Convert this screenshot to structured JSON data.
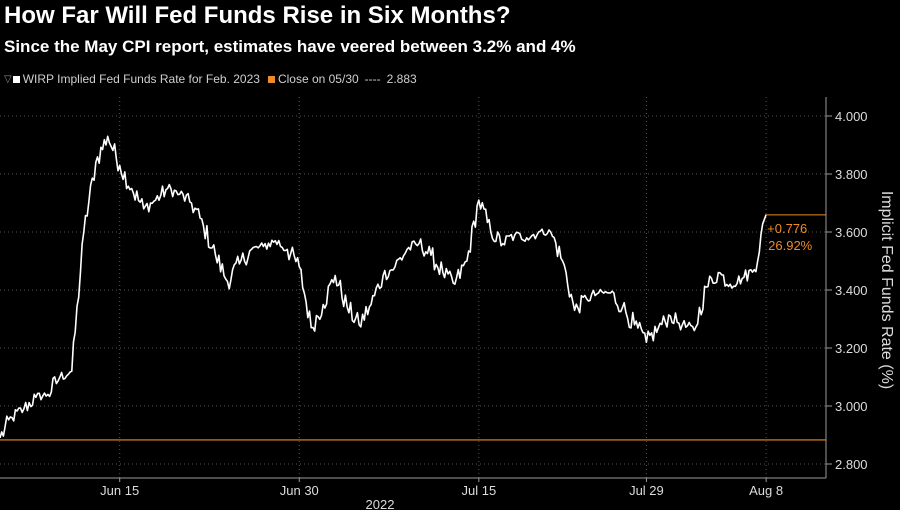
{
  "title": "How Far Will Fed Funds Rise in Six Months?",
  "subtitle": "Since the May CPI report, estimates have veered between 3.2% and 4%",
  "legend": {
    "filter_icon": "filter-icon",
    "series_label": "WIRP Implied Fed Funds Rate for Feb. 2023",
    "close_label": "Close on 05/30",
    "close_dashes": "----",
    "close_value": "2.883"
  },
  "colors": {
    "background": "#000000",
    "series": "#ffffff",
    "close_line": "#f08a24",
    "grid": "#555555",
    "axis": "#9a9a9a"
  },
  "chart_data": {
    "type": "line",
    "ylabel": "Implicit Fed Funds Rate (%)",
    "ylim": [
      2.8,
      4.0
    ],
    "y_ticks": [
      "4.000",
      "3.800",
      "3.600",
      "3.400",
      "3.200",
      "3.000",
      "2.800"
    ],
    "y_tick_values": [
      4.0,
      3.8,
      3.6,
      3.4,
      3.2,
      3.0,
      2.8
    ],
    "x_ticks": [
      "Jun 15",
      "Jun 30",
      "Jul 15",
      "Jul 29",
      "Aug 8"
    ],
    "x_tick_dates": [
      "2022-06-15",
      "2022-06-30",
      "2022-07-15",
      "2022-07-29",
      "2022-08-08"
    ],
    "x_year_label": "2022",
    "xlim": [
      "2022-06-05",
      "2022-08-13"
    ],
    "grid": "horizontal dotted",
    "legend_position": "top-left",
    "series": [
      {
        "name": "WIRP Implied Fed Funds Rate for Feb. 2023",
        "points": [
          [
            "2022-06-05",
            2.89
          ],
          [
            "2022-06-06",
            2.96
          ],
          [
            "2022-06-07",
            2.99
          ],
          [
            "2022-06-08",
            3.03
          ],
          [
            "2022-06-09",
            3.04
          ],
          [
            "2022-06-10",
            3.1
          ],
          [
            "2022-06-11",
            3.12
          ],
          [
            "2022-06-12",
            3.6
          ],
          [
            "2022-06-13",
            3.84
          ],
          [
            "2022-06-14",
            3.93
          ],
          [
            "2022-06-15",
            3.83
          ],
          [
            "2022-06-16",
            3.75
          ],
          [
            "2022-06-17",
            3.68
          ],
          [
            "2022-06-18",
            3.71
          ],
          [
            "2022-06-19",
            3.75
          ],
          [
            "2022-06-20",
            3.73
          ],
          [
            "2022-06-21",
            3.7
          ],
          [
            "2022-06-22",
            3.62
          ],
          [
            "2022-06-23",
            3.52
          ],
          [
            "2022-06-24",
            3.43
          ],
          [
            "2022-06-25",
            3.49
          ],
          [
            "2022-06-26",
            3.54
          ],
          [
            "2022-06-27",
            3.55
          ],
          [
            "2022-06-28",
            3.57
          ],
          [
            "2022-06-29",
            3.54
          ],
          [
            "2022-06-30",
            3.48
          ],
          [
            "2022-07-01",
            3.27
          ],
          [
            "2022-07-02",
            3.35
          ],
          [
            "2022-07-03",
            3.45
          ],
          [
            "2022-07-04",
            3.34
          ],
          [
            "2022-07-05",
            3.28
          ],
          [
            "2022-07-06",
            3.35
          ],
          [
            "2022-07-07",
            3.45
          ],
          [
            "2022-07-08",
            3.48
          ],
          [
            "2022-07-09",
            3.54
          ],
          [
            "2022-07-10",
            3.56
          ],
          [
            "2022-07-11",
            3.52
          ],
          [
            "2022-07-12",
            3.46
          ],
          [
            "2022-07-13",
            3.42
          ],
          [
            "2022-07-14",
            3.5
          ],
          [
            "2022-07-15",
            3.71
          ],
          [
            "2022-07-16",
            3.6
          ],
          [
            "2022-07-17",
            3.56
          ],
          [
            "2022-07-18",
            3.59
          ],
          [
            "2022-07-19",
            3.58
          ],
          [
            "2022-07-20",
            3.6
          ],
          [
            "2022-07-21",
            3.6
          ],
          [
            "2022-07-22",
            3.5
          ],
          [
            "2022-07-23",
            3.33
          ],
          [
            "2022-07-24",
            3.37
          ],
          [
            "2022-07-25",
            3.39
          ],
          [
            "2022-07-26",
            3.39
          ],
          [
            "2022-07-27",
            3.34
          ],
          [
            "2022-07-28",
            3.28
          ],
          [
            "2022-07-29",
            3.22
          ],
          [
            "2022-07-30",
            3.27
          ],
          [
            "2022-07-31",
            3.31
          ],
          [
            "2022-08-01",
            3.28
          ],
          [
            "2022-08-02",
            3.26
          ],
          [
            "2022-08-03",
            3.41
          ],
          [
            "2022-08-04",
            3.46
          ],
          [
            "2022-08-05",
            3.42
          ],
          [
            "2022-08-06",
            3.44
          ],
          [
            "2022-08-07",
            3.47
          ],
          [
            "2022-08-08",
            3.66
          ]
        ]
      },
      {
        "name": "Close on 05/30",
        "type": "horizontal",
        "value": 2.883
      }
    ],
    "annotations": {
      "change": "+0.776",
      "change_pct": "26.92%",
      "last_value": 3.659
    }
  }
}
